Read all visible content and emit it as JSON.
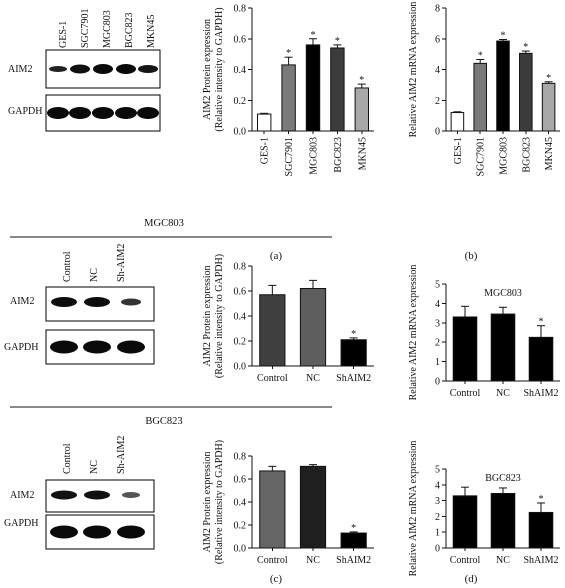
{
  "panel_labels": {
    "a": "(a)",
    "b": "(b)",
    "c": "(c)",
    "d": "(d)"
  },
  "blots": {
    "a": {
      "lanes": [
        "GES-1",
        "SGC7901",
        "MGC803",
        "BGC823",
        "MKN45"
      ],
      "rows": [
        "AIM2",
        "GAPDH"
      ]
    },
    "c_top": {
      "header": "MGC803",
      "lanes": [
        "Control",
        "NC",
        "Sh-AIM2"
      ],
      "rows": [
        "AIM2",
        "GAPDH"
      ]
    },
    "c_bottom": {
      "header": "BGC823",
      "lanes": [
        "Control",
        "NC",
        "Sh-AIM2"
      ],
      "rows": [
        "AIM2",
        "GAPDH"
      ]
    }
  },
  "chart_data": [
    {
      "id": "a",
      "type": "bar",
      "categories": [
        "GES-1",
        "SGC7901",
        "MGC803",
        "BGC823",
        "MKN45"
      ],
      "values": [
        0.11,
        0.43,
        0.56,
        0.54,
        0.28
      ],
      "errors": [
        0.005,
        0.05,
        0.04,
        0.02,
        0.025
      ],
      "significance": [
        "",
        "*",
        "*",
        "*",
        "*"
      ],
      "colors": [
        "#ffffff",
        "#7a7a7a",
        "#000000",
        "#3c3c3c",
        "#a8a8a8"
      ],
      "ylabel_lines": [
        "AIM2 Protein expression",
        "(Relative intensity to GAPDH)"
      ],
      "xlabel": "",
      "title": "",
      "ylim": [
        0,
        0.8
      ],
      "yticks": [
        "0.0",
        "0.2",
        "0.4",
        "0.6",
        "0.8"
      ],
      "xtick_rotation": "vertical",
      "grid": false
    },
    {
      "id": "b",
      "type": "bar",
      "categories": [
        "GES-1",
        "SGC7901",
        "MGC803",
        "BGC823",
        "MKN45"
      ],
      "values": [
        1.2,
        4.4,
        5.85,
        5.05,
        3.1
      ],
      "errors": [
        0.05,
        0.25,
        0.1,
        0.15,
        0.1
      ],
      "significance": [
        "",
        "*",
        "*",
        "*",
        "*"
      ],
      "colors": [
        "#ffffff",
        "#7a7a7a",
        "#000000",
        "#3c3c3c",
        "#a8a8a8"
      ],
      "ylabel_lines": [
        "Relative AIM2 mRNA expression"
      ],
      "xlabel": "",
      "title": "",
      "ylim": [
        0,
        8
      ],
      "yticks": [
        "0",
        "2",
        "4",
        "6",
        "8"
      ],
      "xtick_rotation": "vertical",
      "grid": false
    },
    {
      "id": "c1",
      "type": "bar",
      "categories": [
        "Control",
        "NC",
        "ShAIM2"
      ],
      "values": [
        0.57,
        0.62,
        0.21
      ],
      "errors": [
        0.075,
        0.065,
        0.015
      ],
      "significance": [
        "",
        "",
        "*"
      ],
      "colors": [
        "#404040",
        "#5e5e5e",
        "#000000"
      ],
      "ylabel_lines": [
        "AIM2 Protein expression",
        "(Relative intensity to GAPDH)"
      ],
      "xlabel": "",
      "title": "",
      "ylim": [
        0,
        0.8
      ],
      "yticks": [
        "0.0",
        "0.2",
        "0.4",
        "0.6",
        "0.8"
      ],
      "xtick_rotation": "horizontal",
      "grid": false
    },
    {
      "id": "c2",
      "type": "bar",
      "categories": [
        "Control",
        "NC",
        "ShAIM2"
      ],
      "values": [
        0.67,
        0.71,
        0.13
      ],
      "errors": [
        0.04,
        0.015,
        0.01
      ],
      "significance": [
        "",
        "",
        "*"
      ],
      "colors": [
        "#666666",
        "#1f1f1f",
        "#000000"
      ],
      "ylabel_lines": [
        "AIM2 Protein expression",
        "(Relative intensity to GAPDH)"
      ],
      "xlabel": "",
      "title": "",
      "ylim": [
        0,
        0.8
      ],
      "yticks": [
        "0.0",
        "0.2",
        "0.4",
        "0.6",
        "0.8"
      ],
      "xtick_rotation": "horizontal",
      "grid": false
    },
    {
      "id": "d1",
      "type": "bar",
      "categories": [
        "Control",
        "NC",
        "ShAIM2"
      ],
      "values": [
        3.3,
        3.45,
        2.25
      ],
      "errors": [
        0.55,
        0.35,
        0.6
      ],
      "significance": [
        "",
        "",
        "*"
      ],
      "colors": [
        "#000000",
        "#000000",
        "#000000"
      ],
      "ylabel_lines": [
        "Relative AIM2 mRNA expression"
      ],
      "title": "MGC803",
      "xlabel": "",
      "ylim": [
        0,
        5
      ],
      "yticks": [
        "0",
        "1",
        "2",
        "3",
        "4",
        "5"
      ],
      "xtick_rotation": "horizontal",
      "grid": false
    },
    {
      "id": "d2",
      "type": "bar",
      "categories": [
        "Control",
        "NC",
        "ShAIM2"
      ],
      "values": [
        3.3,
        3.45,
        2.25
      ],
      "errors": [
        0.55,
        0.35,
        0.6
      ],
      "significance": [
        "",
        "",
        "*"
      ],
      "colors": [
        "#000000",
        "#000000",
        "#000000"
      ],
      "ylabel_lines": [
        "Relative AIM2 mRNA expression"
      ],
      "title": "BGC823",
      "xlabel": "",
      "ylim": [
        0,
        5
      ],
      "yticks": [
        "0",
        "1",
        "2",
        "3",
        "4",
        "5"
      ],
      "xtick_rotation": "horizontal",
      "grid": false
    }
  ]
}
